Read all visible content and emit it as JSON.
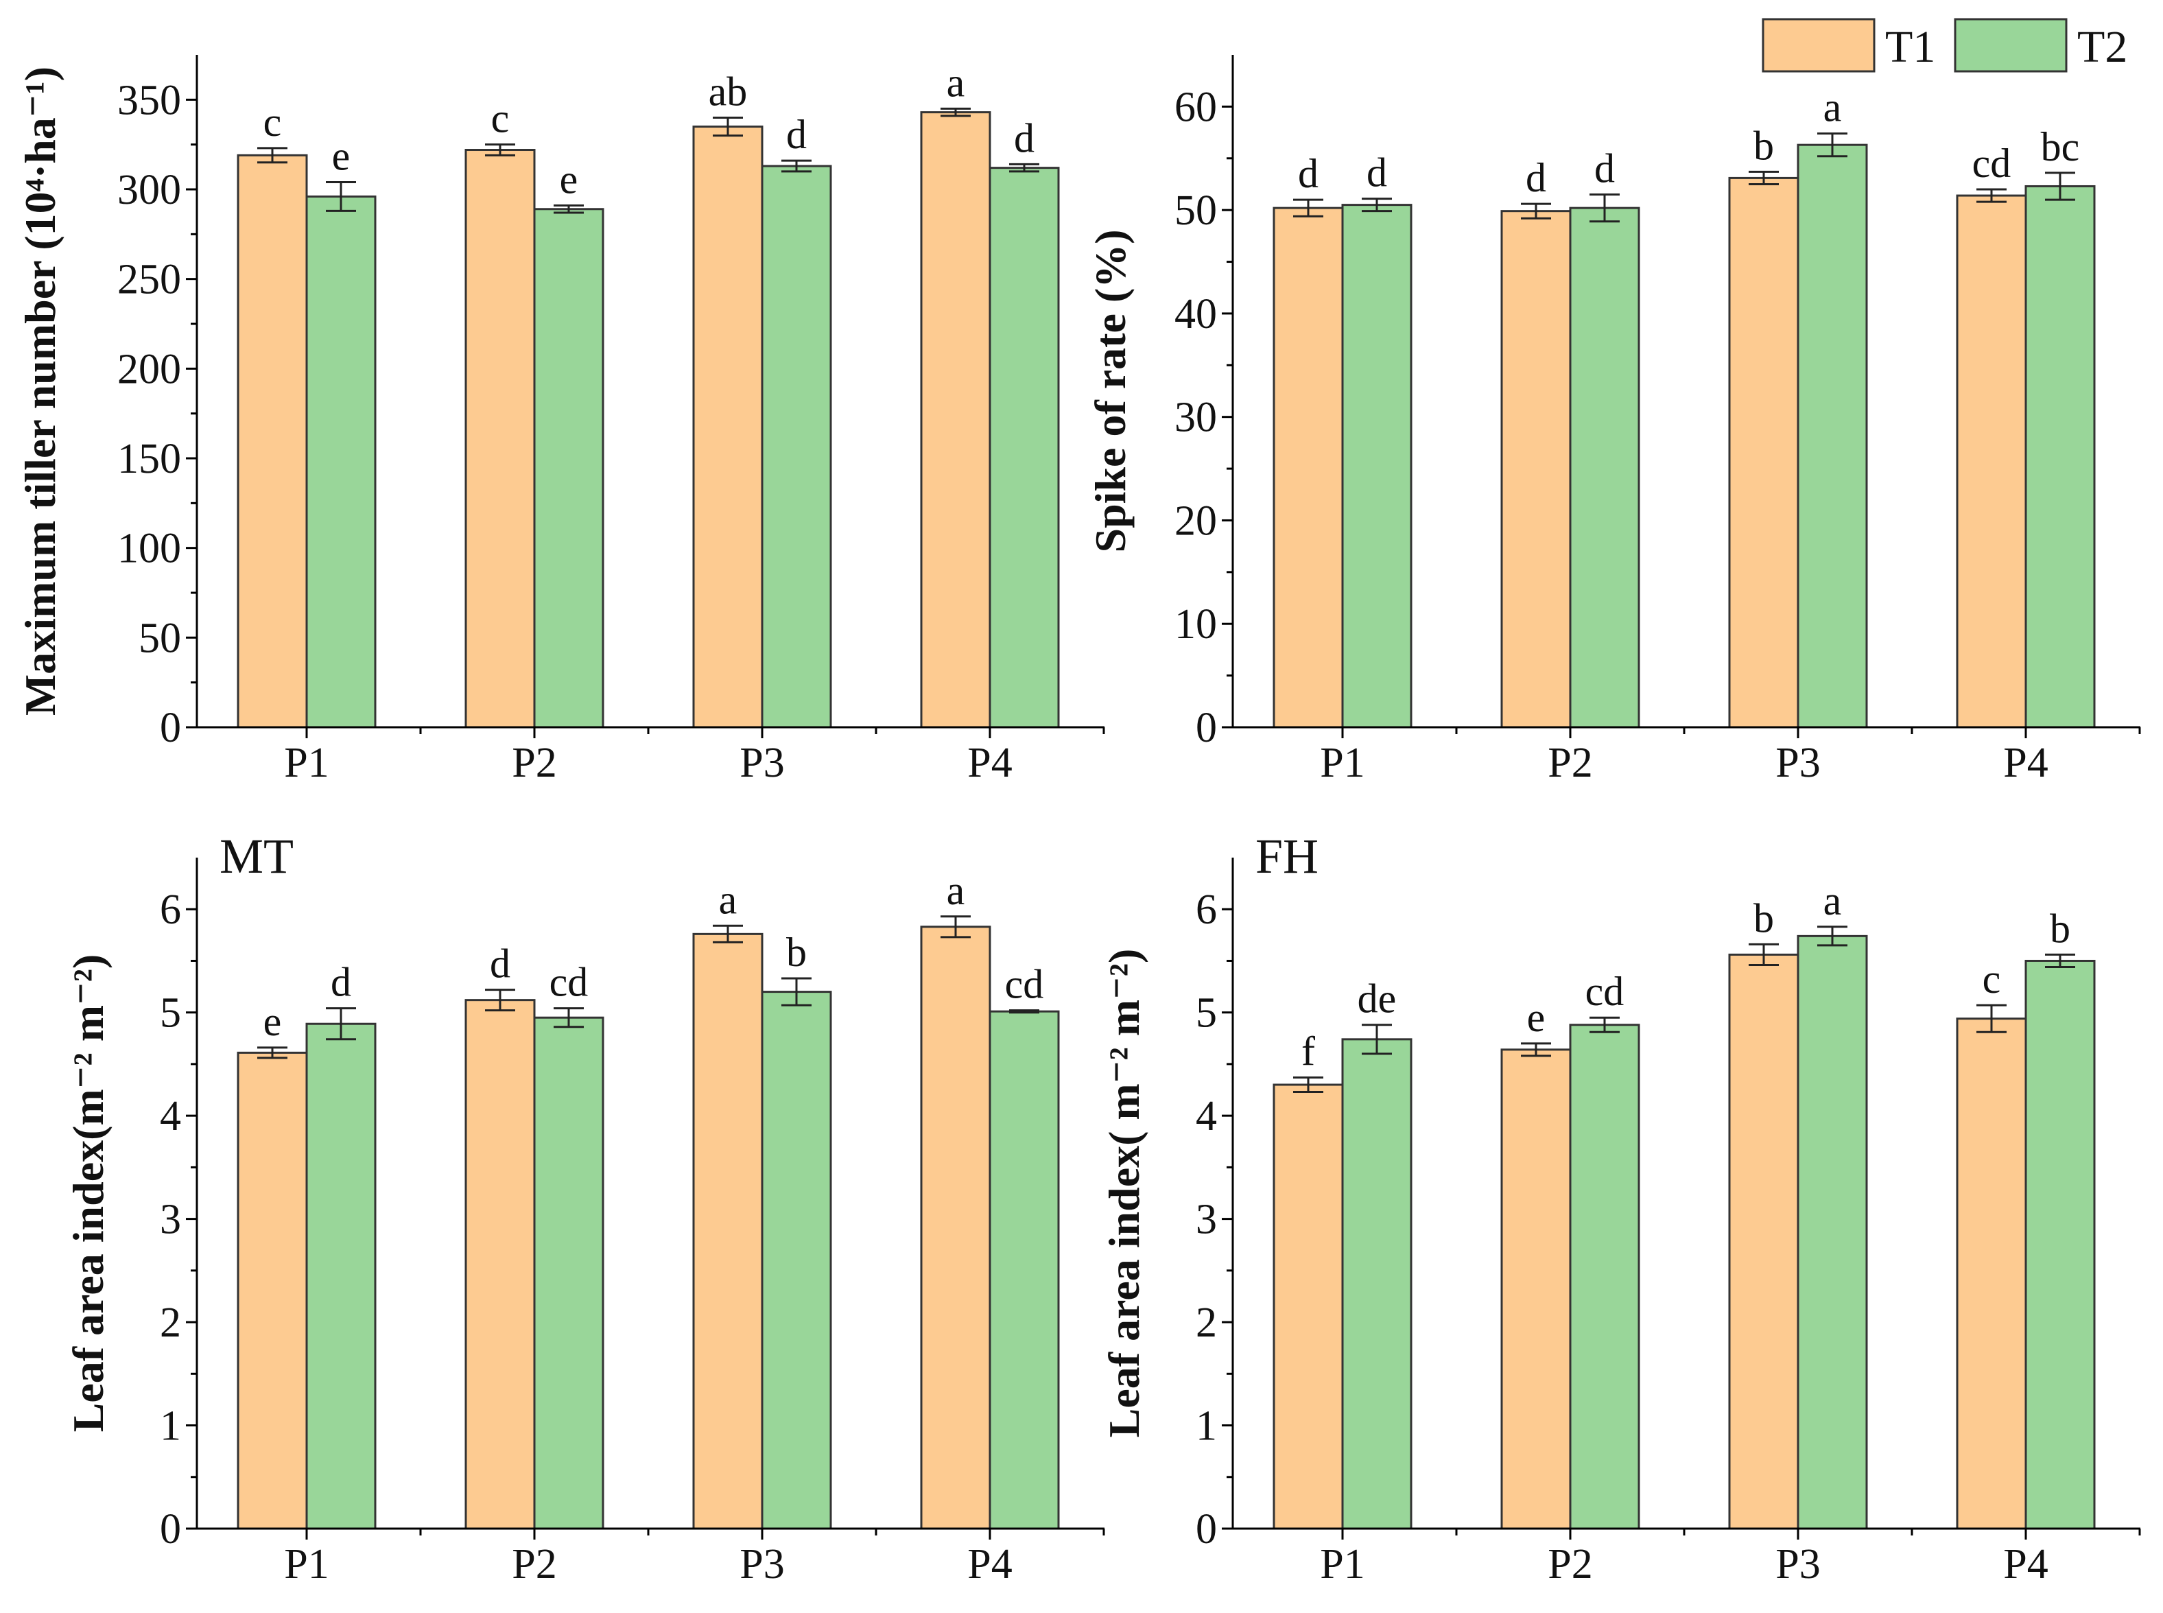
{
  "colors": {
    "T1": "#FDCB91",
    "T2": "#99D699",
    "axis": "#000000",
    "outline": "#333333"
  },
  "legend": {
    "items": [
      {
        "key": "T1",
        "label": "T1"
      },
      {
        "key": "T2",
        "label": "T2"
      }
    ]
  },
  "chart_data": [
    {
      "type": "bar",
      "panel_tag": "",
      "categories": [
        "P1",
        "P2",
        "P3",
        "P4"
      ],
      "ylabel": "Maximum tiller number (10⁴·ha⁻¹)",
      "ylim": [
        0,
        375
      ],
      "yticks": [
        0,
        50,
        100,
        150,
        200,
        250,
        300,
        350
      ],
      "series": [
        {
          "name": "T1",
          "values": [
            319,
            322,
            335,
            343
          ],
          "errors": [
            4,
            3,
            5,
            2
          ],
          "labels": [
            "c",
            "c",
            "ab",
            "a"
          ]
        },
        {
          "name": "T2",
          "values": [
            296,
            289,
            313,
            312
          ],
          "errors": [
            8,
            2,
            3,
            2
          ],
          "labels": [
            "e",
            "e",
            "d",
            "d"
          ]
        }
      ]
    },
    {
      "type": "bar",
      "panel_tag": "",
      "categories": [
        "P1",
        "P2",
        "P3",
        "P4"
      ],
      "ylabel": "Spike of rate (%)",
      "ylim": [
        0,
        65
      ],
      "yticks": [
        0,
        10,
        20,
        30,
        40,
        50,
        60
      ],
      "series": [
        {
          "name": "T1",
          "values": [
            50.2,
            49.9,
            53.1,
            51.4
          ],
          "errors": [
            0.8,
            0.7,
            0.6,
            0.6
          ],
          "labels": [
            "d",
            "d",
            "b",
            "cd"
          ]
        },
        {
          "name": "T2",
          "values": [
            50.5,
            50.2,
            56.3,
            52.3
          ],
          "errors": [
            0.6,
            1.3,
            1.1,
            1.3
          ],
          "labels": [
            "d",
            "d",
            "a",
            "bc"
          ]
        }
      ]
    },
    {
      "type": "bar",
      "panel_tag": "MT",
      "categories": [
        "P1",
        "P2",
        "P3",
        "P4"
      ],
      "ylabel": "Leaf area index(m⁻² m⁻²)",
      "ylim": [
        0,
        6.5
      ],
      "yticks": [
        0,
        1,
        2,
        3,
        4,
        5,
        6
      ],
      "series": [
        {
          "name": "T1",
          "values": [
            4.61,
            5.12,
            5.76,
            5.83
          ],
          "errors": [
            0.05,
            0.1,
            0.08,
            0.1
          ],
          "labels": [
            "e",
            "d",
            "a",
            "a"
          ]
        },
        {
          "name": "T2",
          "values": [
            4.89,
            4.95,
            5.2,
            5.01
          ],
          "errors": [
            0.15,
            0.09,
            0.13,
            0.01
          ],
          "labels": [
            "d",
            "cd",
            "b",
            "cd"
          ]
        }
      ]
    },
    {
      "type": "bar",
      "panel_tag": "FH",
      "categories": [
        "P1",
        "P2",
        "P3",
        "P4"
      ],
      "ylabel": "Leaf area index( m⁻² m⁻²)",
      "ylim": [
        0,
        6.5
      ],
      "yticks": [
        0,
        1,
        2,
        3,
        4,
        5,
        6
      ],
      "series": [
        {
          "name": "T1",
          "values": [
            4.3,
            4.64,
            5.56,
            4.94
          ],
          "errors": [
            0.07,
            0.06,
            0.1,
            0.13
          ],
          "labels": [
            "f",
            "e",
            "b",
            "c"
          ]
        },
        {
          "name": "T2",
          "values": [
            4.74,
            4.88,
            5.74,
            5.5
          ],
          "errors": [
            0.14,
            0.07,
            0.09,
            0.06
          ],
          "labels": [
            "de",
            "cd",
            "a",
            "b"
          ]
        }
      ]
    }
  ]
}
